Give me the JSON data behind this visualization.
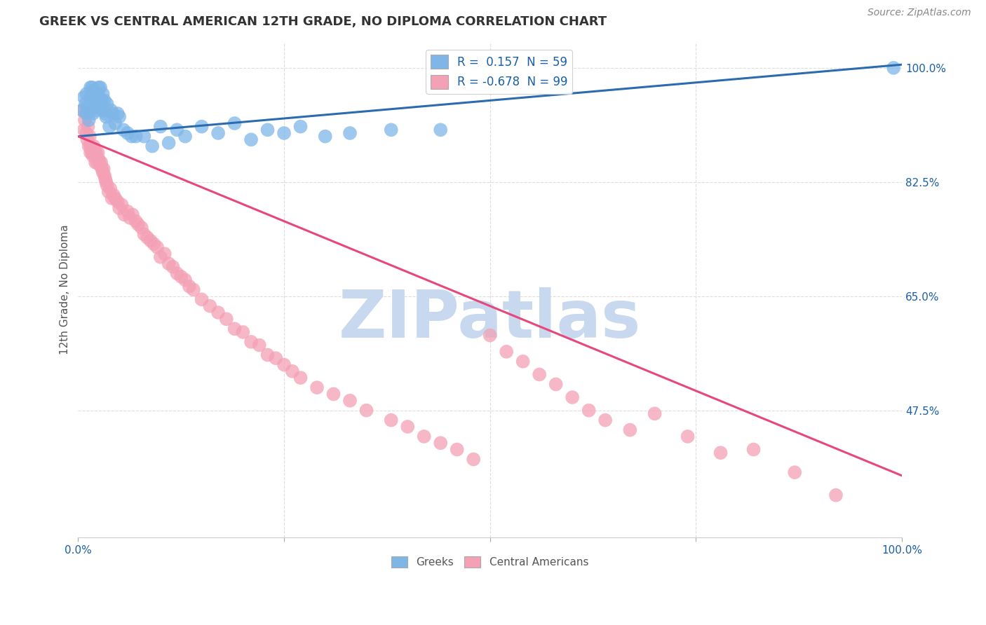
{
  "title": "GREEK VS CENTRAL AMERICAN 12TH GRADE, NO DIPLOMA CORRELATION CHART",
  "source": "Source: ZipAtlas.com",
  "ylabel": "12th Grade, No Diploma",
  "xlim": [
    0,
    1
  ],
  "ylim": [
    0.28,
    1.04
  ],
  "x_ticks": [
    0,
    0.25,
    0.5,
    0.75,
    1.0
  ],
  "x_tick_labels": [
    "0.0%",
    "",
    "",
    "",
    "100.0%"
  ],
  "y_tick_labels": [
    "100.0%",
    "82.5%",
    "65.0%",
    "47.5%"
  ],
  "y_tick_values": [
    1.0,
    0.825,
    0.65,
    0.475
  ],
  "greek_R": 0.157,
  "greek_N": 59,
  "central_R": -0.678,
  "central_N": 99,
  "greek_color": "#7EB6E8",
  "greek_line_color": "#2B6CB0",
  "central_color": "#F4A0B5",
  "central_line_color": "#E8477A",
  "watermark": "ZIPatlas",
  "watermark_color": "#C8D8EE",
  "legend_text_color": "#1A5FA8",
  "title_color": "#333333",
  "axis_label_color": "#555555",
  "tick_label_color": "#1A5FA8",
  "grid_color": "#DDDDDD",
  "background_color": "#FFFFFF",
  "greek_line_x0": 0.0,
  "greek_line_y0": 0.895,
  "greek_line_x1": 1.0,
  "greek_line_y1": 1.005,
  "central_line_x0": 0.0,
  "central_line_y0": 0.895,
  "central_line_x1": 1.0,
  "central_line_y1": 0.375,
  "greek_x": [
    0.005,
    0.007,
    0.009,
    0.01,
    0.01,
    0.012,
    0.013,
    0.014,
    0.015,
    0.015,
    0.016,
    0.017,
    0.018,
    0.019,
    0.02,
    0.02,
    0.021,
    0.022,
    0.023,
    0.024,
    0.025,
    0.026,
    0.027,
    0.028,
    0.029,
    0.03,
    0.031,
    0.032,
    0.033,
    0.034,
    0.035,
    0.038,
    0.04,
    0.042,
    0.045,
    0.048,
    0.05,
    0.055,
    0.06,
    0.065,
    0.07,
    0.08,
    0.09,
    0.1,
    0.11,
    0.12,
    0.13,
    0.15,
    0.17,
    0.19,
    0.21,
    0.23,
    0.25,
    0.27,
    0.3,
    0.33,
    0.38,
    0.44,
    0.99
  ],
  "greek_y": [
    0.935,
    0.955,
    0.945,
    0.93,
    0.96,
    0.94,
    0.92,
    0.935,
    0.955,
    0.97,
    0.96,
    0.97,
    0.93,
    0.965,
    0.94,
    0.96,
    0.935,
    0.955,
    0.945,
    0.96,
    0.97,
    0.94,
    0.97,
    0.95,
    0.945,
    0.96,
    0.935,
    0.95,
    0.93,
    0.925,
    0.945,
    0.91,
    0.935,
    0.93,
    0.915,
    0.93,
    0.925,
    0.905,
    0.9,
    0.895,
    0.895,
    0.895,
    0.88,
    0.91,
    0.885,
    0.905,
    0.895,
    0.91,
    0.9,
    0.915,
    0.89,
    0.905,
    0.9,
    0.91,
    0.895,
    0.9,
    0.905,
    0.905,
    1.0
  ],
  "central_x": [
    0.005,
    0.007,
    0.008,
    0.01,
    0.01,
    0.011,
    0.012,
    0.013,
    0.014,
    0.015,
    0.015,
    0.016,
    0.017,
    0.018,
    0.019,
    0.02,
    0.02,
    0.021,
    0.022,
    0.023,
    0.024,
    0.025,
    0.026,
    0.027,
    0.028,
    0.029,
    0.03,
    0.031,
    0.032,
    0.033,
    0.034,
    0.035,
    0.037,
    0.039,
    0.041,
    0.043,
    0.045,
    0.048,
    0.05,
    0.053,
    0.056,
    0.06,
    0.063,
    0.066,
    0.07,
    0.073,
    0.077,
    0.08,
    0.084,
    0.088,
    0.092,
    0.096,
    0.1,
    0.105,
    0.11,
    0.115,
    0.12,
    0.125,
    0.13,
    0.135,
    0.14,
    0.15,
    0.16,
    0.17,
    0.18,
    0.19,
    0.2,
    0.21,
    0.22,
    0.23,
    0.24,
    0.25,
    0.26,
    0.27,
    0.29,
    0.31,
    0.33,
    0.35,
    0.38,
    0.4,
    0.42,
    0.44,
    0.46,
    0.48,
    0.5,
    0.52,
    0.54,
    0.56,
    0.58,
    0.6,
    0.62,
    0.64,
    0.67,
    0.7,
    0.74,
    0.78,
    0.82,
    0.87,
    0.92
  ],
  "central_y": [
    0.935,
    0.905,
    0.92,
    0.9,
    0.93,
    0.89,
    0.91,
    0.88,
    0.895,
    0.88,
    0.87,
    0.875,
    0.87,
    0.865,
    0.88,
    0.875,
    0.87,
    0.855,
    0.87,
    0.855,
    0.87,
    0.86,
    0.855,
    0.85,
    0.855,
    0.845,
    0.84,
    0.845,
    0.835,
    0.83,
    0.825,
    0.82,
    0.81,
    0.815,
    0.8,
    0.805,
    0.8,
    0.795,
    0.785,
    0.79,
    0.775,
    0.78,
    0.77,
    0.775,
    0.765,
    0.76,
    0.755,
    0.745,
    0.74,
    0.735,
    0.73,
    0.725,
    0.71,
    0.715,
    0.7,
    0.695,
    0.685,
    0.68,
    0.675,
    0.665,
    0.66,
    0.645,
    0.635,
    0.625,
    0.615,
    0.6,
    0.595,
    0.58,
    0.575,
    0.56,
    0.555,
    0.545,
    0.535,
    0.525,
    0.51,
    0.5,
    0.49,
    0.475,
    0.46,
    0.45,
    0.435,
    0.425,
    0.415,
    0.4,
    0.59,
    0.565,
    0.55,
    0.53,
    0.515,
    0.495,
    0.475,
    0.46,
    0.445,
    0.47,
    0.435,
    0.41,
    0.415,
    0.38,
    0.345
  ]
}
